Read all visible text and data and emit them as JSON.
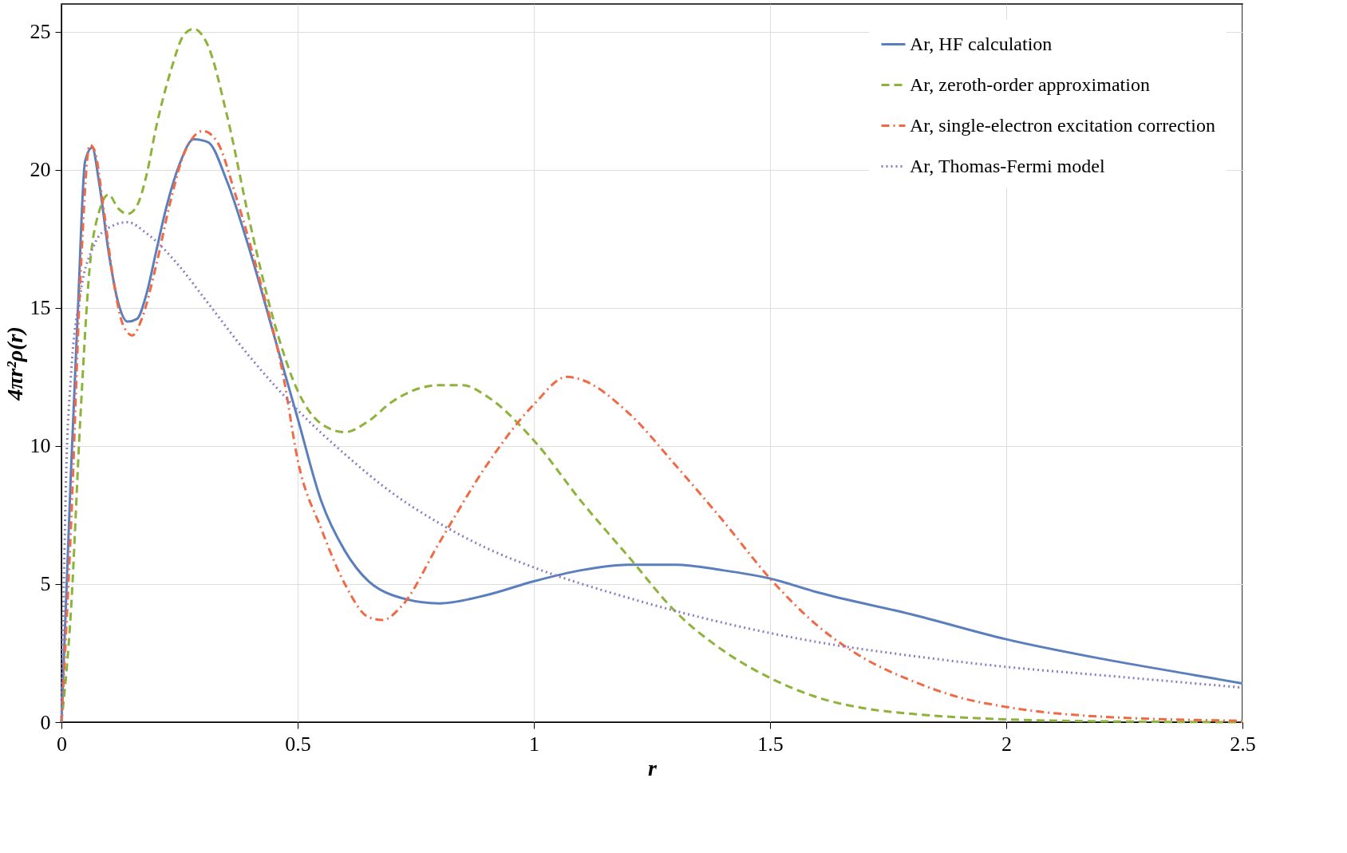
{
  "chart_data": {
    "type": "line",
    "xlabel": "r",
    "ylabel": "4πr²ρ(r)",
    "xlim": [
      0,
      2.5
    ],
    "xticks": [
      0,
      0.5,
      1,
      1.5,
      2,
      2.5
    ],
    "ylim": [
      0,
      26
    ],
    "yticks": [
      0,
      5,
      10,
      15,
      20,
      25
    ],
    "grid": true,
    "legend": "top right",
    "series": [
      {
        "name": "Ar, HF calculation",
        "color": "#5b7fbd",
        "line_style": "solid",
        "x": [
          0,
          0.02,
          0.035,
          0.05,
          0.065,
          0.08,
          0.1,
          0.12,
          0.14,
          0.16,
          0.18,
          0.2,
          0.22,
          0.25,
          0.28,
          0.31,
          0.35,
          0.4,
          0.45,
          0.5,
          0.55,
          0.6,
          0.65,
          0.7,
          0.8,
          0.9,
          1.0,
          1.1,
          1.2,
          1.3,
          1.4,
          1.5,
          1.6,
          1.8,
          2.0,
          2.2,
          2.4,
          2.5
        ],
        "values": [
          0,
          9,
          15,
          20.3,
          20.8,
          19.5,
          17,
          15.2,
          14.5,
          14.6,
          15.5,
          17,
          18.5,
          20.2,
          21.1,
          21,
          19.6,
          17,
          14,
          11,
          8,
          6.2,
          5.1,
          4.6,
          4.3,
          4.6,
          5.1,
          5.5,
          5.7,
          5.7,
          5.5,
          5.2,
          4.7,
          3.9,
          3.0,
          2.3,
          1.7,
          1.4
        ]
      },
      {
        "name": "Ar, zeroth-order approximation",
        "color": "#8db33a",
        "line_style": "dashed",
        "x": [
          0,
          0.02,
          0.04,
          0.06,
          0.08,
          0.1,
          0.12,
          0.14,
          0.16,
          0.18,
          0.2,
          0.23,
          0.26,
          0.28,
          0.31,
          0.35,
          0.4,
          0.45,
          0.5,
          0.55,
          0.6,
          0.65,
          0.7,
          0.8,
          0.85,
          0.9,
          1.0,
          1.1,
          1.2,
          1.3,
          1.4,
          1.5,
          1.6,
          1.7,
          1.8,
          2.0,
          2.2,
          2.5
        ],
        "values": [
          0,
          4,
          11,
          16.5,
          18.5,
          19.1,
          18.6,
          18.4,
          18.7,
          19.8,
          21.5,
          23.5,
          24.9,
          25.1,
          24.5,
          22,
          18,
          14.5,
          12,
          10.8,
          10.5,
          10.9,
          11.6,
          12.2,
          12.2,
          11.8,
          10.2,
          8,
          6,
          4,
          2.6,
          1.6,
          0.9,
          0.5,
          0.3,
          0.1,
          0.03,
          0
        ]
      },
      {
        "name": "Ar, single-electron excitation correction",
        "color": "#ef6a45",
        "line_style": "dashdot",
        "x": [
          0,
          0.02,
          0.04,
          0.06,
          0.07,
          0.09,
          0.11,
          0.13,
          0.15,
          0.17,
          0.2,
          0.23,
          0.26,
          0.3,
          0.33,
          0.37,
          0.42,
          0.47,
          0.5,
          0.55,
          0.6,
          0.65,
          0.68,
          0.72,
          0.8,
          0.9,
          1.0,
          1.07,
          1.1,
          1.2,
          1.3,
          1.4,
          1.5,
          1.6,
          1.7,
          1.8,
          1.9,
          2.0,
          2.2,
          2.5
        ],
        "values": [
          0,
          7,
          16,
          20.9,
          20.7,
          18.5,
          16,
          14.4,
          14,
          14.6,
          16.5,
          18.8,
          20.6,
          21.4,
          21,
          19,
          16,
          12.5,
          9.5,
          7,
          5,
          3.8,
          3.7,
          4.2,
          6.5,
          9.3,
          11.5,
          12.5,
          12.4,
          11.2,
          9.3,
          7.3,
          5.2,
          3.5,
          2.3,
          1.5,
          0.9,
          0.55,
          0.2,
          0.05
        ]
      },
      {
        "name": "Ar, Thomas-Fermi model",
        "color": "#8a7dc4",
        "line_style": "dotted",
        "x": [
          0,
          0.005,
          0.01,
          0.02,
          0.04,
          0.07,
          0.1,
          0.14,
          0.18,
          0.25,
          0.3,
          0.4,
          0.5,
          0.6,
          0.7,
          0.8,
          0.9,
          1.0,
          1.2,
          1.4,
          1.6,
          1.8,
          2.0,
          2.2,
          2.5
        ],
        "values": [
          0,
          5,
          9,
          12.5,
          15.5,
          17.3,
          17.9,
          18.1,
          17.7,
          16.5,
          15.4,
          13.2,
          11.3,
          9.7,
          8.3,
          7.2,
          6.3,
          5.6,
          4.5,
          3.6,
          2.9,
          2.4,
          2.0,
          1.7,
          1.25
        ]
      }
    ]
  }
}
